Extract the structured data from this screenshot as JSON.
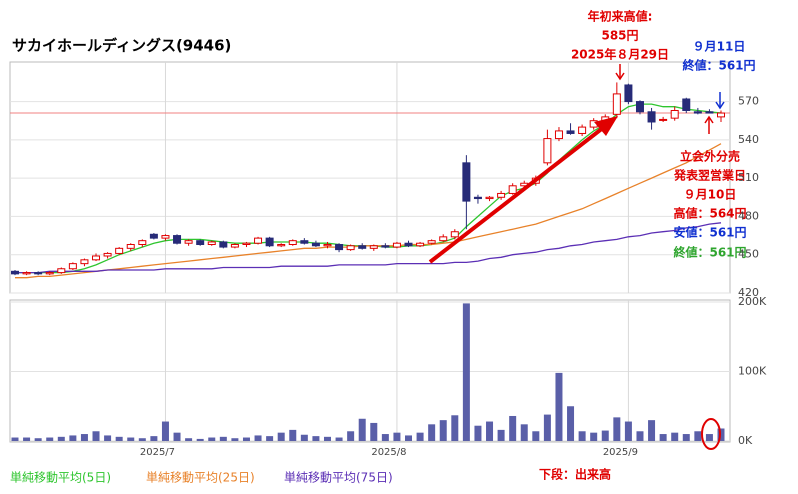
{
  "chart_data": {
    "type": "candlestick",
    "title": "サカイホールディングス(9446)",
    "categories": [
      null,
      null,
      null,
      null,
      null,
      null,
      null,
      null,
      null,
      null,
      null,
      null,
      null,
      "2025/7",
      null,
      null,
      null,
      null,
      null,
      null,
      null,
      null,
      null,
      null,
      null,
      null,
      null,
      null,
      null,
      null,
      null,
      null,
      null,
      "2025/8",
      null,
      null,
      null,
      null,
      null,
      null,
      null,
      null,
      null,
      null,
      null,
      null,
      null,
      null,
      null,
      null,
      null,
      null,
      null,
      "2025/9",
      null,
      null,
      null,
      null,
      null,
      null,
      null,
      null
    ],
    "open": [
      437,
      435,
      436,
      435,
      436,
      439,
      443,
      446,
      449,
      451,
      455,
      458,
      466,
      463,
      465,
      459,
      461,
      458,
      460,
      456,
      458,
      459,
      463,
      457,
      458,
      461,
      459,
      457,
      458,
      454,
      457,
      455,
      457,
      456,
      459,
      457,
      459,
      461,
      464,
      522,
      495,
      494,
      495,
      498,
      504,
      506,
      522,
      541,
      547,
      545,
      550,
      555,
      560,
      583,
      570,
      562,
      556,
      557,
      572,
      562,
      562,
      558
    ],
    "high": [
      438,
      437,
      437,
      437,
      440,
      444,
      447,
      451,
      452,
      456,
      459,
      462,
      467,
      466,
      466,
      462,
      462,
      461,
      461,
      459,
      460,
      464,
      464,
      459,
      462,
      463,
      461,
      460,
      459,
      458,
      459,
      458,
      459,
      460,
      461,
      460,
      462,
      466,
      470,
      528,
      497,
      496,
      500,
      506,
      508,
      512,
      548,
      550,
      553,
      552,
      557,
      560,
      585,
      584,
      571,
      565,
      558,
      566,
      573,
      565,
      564,
      563
    ],
    "low": [
      434,
      434,
      434,
      434,
      435,
      438,
      441,
      445,
      447,
      450,
      453,
      456,
      462,
      461,
      458,
      457,
      457,
      457,
      455,
      455,
      456,
      458,
      456,
      456,
      457,
      458,
      456,
      455,
      452,
      453,
      454,
      453,
      455,
      455,
      456,
      456,
      458,
      460,
      462,
      470,
      490,
      492,
      493,
      497,
      502,
      504,
      520,
      539,
      544,
      543,
      548,
      553,
      557,
      568,
      560,
      548,
      554,
      555,
      561,
      560,
      561,
      554
    ],
    "close": [
      435,
      436,
      435,
      436,
      439,
      443,
      446,
      449,
      451,
      455,
      458,
      461,
      463,
      465,
      459,
      461,
      458,
      460,
      456,
      458,
      459,
      463,
      457,
      458,
      461,
      459,
      457,
      458,
      454,
      457,
      455,
      457,
      456,
      459,
      457,
      459,
      461,
      464,
      468,
      492,
      494,
      495,
      498,
      504,
      506,
      510,
      541,
      547,
      545,
      550,
      555,
      558,
      576,
      570,
      562,
      554,
      556,
      563,
      563,
      561,
      561,
      561
    ],
    "up_color": "#e00000",
    "down_color": "#272b78",
    "ylim": [
      420,
      601
    ],
    "yticks": [
      420,
      450,
      480,
      510,
      540,
      570
    ],
    "grid": true,
    "series": [
      {
        "name": "単純移動平均(5日)",
        "color": "#2ec52e",
        "values": [
          436,
          436,
          436,
          436,
          436,
          437,
          439,
          442,
          446,
          450,
          453,
          456,
          459,
          461,
          462,
          462,
          462,
          461,
          460,
          459,
          459,
          459,
          460,
          460,
          460,
          460,
          459,
          459,
          458,
          457,
          457,
          457,
          456,
          456,
          457,
          457,
          458,
          460,
          463,
          472,
          480,
          488,
          496,
          500,
          502,
          506,
          514,
          524,
          532,
          540,
          547,
          552,
          560,
          566,
          568,
          568,
          566,
          566,
          564,
          563,
          562,
          561
        ]
      },
      {
        "name": "単純移動平均(25日)",
        "color": "#e8822a",
        "values": [
          432,
          432,
          433,
          433,
          434,
          435,
          436,
          437,
          438,
          439,
          440,
          441,
          442,
          443,
          444,
          445,
          446,
          447,
          448,
          449,
          450,
          451,
          452,
          453,
          454,
          455,
          455,
          456,
          456,
          456,
          457,
          457,
          457,
          457,
          458,
          458,
          458,
          459,
          460,
          462,
          464,
          466,
          468,
          470,
          472,
          474,
          477,
          480,
          483,
          486,
          490,
          494,
          498,
          502,
          506,
          510,
          514,
          518,
          522,
          527,
          532,
          537
        ]
      },
      {
        "name": "単純移動平均(75日)",
        "color": "#5b2fb5",
        "values": [
          436,
          436,
          436,
          437,
          437,
          437,
          437,
          437,
          438,
          438,
          438,
          438,
          438,
          439,
          439,
          439,
          439,
          439,
          440,
          440,
          440,
          440,
          440,
          441,
          441,
          441,
          441,
          441,
          442,
          442,
          442,
          442,
          442,
          443,
          443,
          443,
          443,
          443,
          444,
          444,
          445,
          447,
          448,
          450,
          451,
          452,
          454,
          455,
          457,
          458,
          460,
          461,
          462,
          464,
          465,
          467,
          468,
          469,
          471,
          472,
          474,
          475
        ]
      }
    ],
    "volume": {
      "label": "下段：出来高",
      "color": "#5a5fa8",
      "values": [
        5000,
        5000,
        4000,
        5000,
        6000,
        8000,
        10000,
        14000,
        8000,
        6000,
        5000,
        4000,
        7000,
        28000,
        12000,
        4000,
        3000,
        5000,
        6000,
        4000,
        5000,
        8000,
        7000,
        12000,
        16000,
        9000,
        7000,
        6000,
        5000,
        14000,
        32000,
        26000,
        10000,
        12000,
        8000,
        12000,
        24000,
        30000,
        37000,
        198000,
        22000,
        28000,
        16000,
        36000,
        24000,
        14000,
        38000,
        98000,
        50000,
        14000,
        12000,
        15000,
        34000,
        28000,
        14000,
        30000,
        10000,
        12000,
        10000,
        14000,
        10000,
        18000
      ],
      "ylim": [
        0,
        200000
      ],
      "yticks": [
        {
          "value": 0,
          "label": "0K"
        },
        {
          "value": 100000,
          "label": "100K"
        },
        {
          "value": 200000,
          "label": "200K"
        }
      ]
    },
    "annotations": {
      "high": [
        "年初来高値:",
        "585円",
        "2025年８月29日"
      ],
      "last": [
        "９月11日",
        "終値：561円"
      ],
      "event": [
        "立会外分売",
        "発表翌営業日",
        "９月10日",
        "高値：564円"
      ],
      "low": "安値：561円",
      "close": "終値：561円"
    }
  }
}
